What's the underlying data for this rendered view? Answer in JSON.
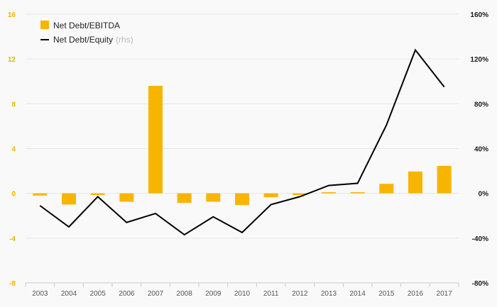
{
  "chart_data": {
    "type": "bar+line",
    "categories": [
      "2003",
      "2004",
      "2005",
      "2006",
      "2007",
      "2008",
      "2009",
      "2010",
      "2011",
      "2012",
      "2013",
      "2014",
      "2015",
      "2016",
      "2017"
    ],
    "series": [
      {
        "name": "Net Debt/EBITDA",
        "type": "bar",
        "axis": "left",
        "color": "#f7b500",
        "values": [
          -0.2,
          -1.0,
          -0.15,
          -0.75,
          9.6,
          -0.85,
          -0.75,
          -1.05,
          -0.35,
          -0.15,
          0.1,
          0.1,
          0.85,
          1.95,
          2.45
        ]
      },
      {
        "name": "Net Debt/Equity",
        "name_note": "(rhs)",
        "type": "line",
        "axis": "right",
        "color": "#000000",
        "values": [
          -11,
          -30,
          -3,
          -26,
          -18,
          -37,
          -21,
          -35,
          -10,
          -3,
          7,
          9,
          61,
          128,
          95
        ]
      }
    ],
    "y_left": {
      "min": -8,
      "max": 16,
      "ticks": [
        -8,
        -4,
        0,
        4,
        8,
        12,
        16
      ],
      "labels": [
        "-8",
        "-4",
        "0",
        "4",
        "8",
        "12",
        "16"
      ]
    },
    "y_right": {
      "min": -80,
      "max": 160,
      "ticks": [
        -80,
        -40,
        0,
        40,
        80,
        120,
        160
      ],
      "labels": [
        "-80%",
        "-40%",
        "0%",
        "40%",
        "80%",
        "120%",
        "160%"
      ]
    },
    "grid": true,
    "legend_position": "top-left"
  }
}
